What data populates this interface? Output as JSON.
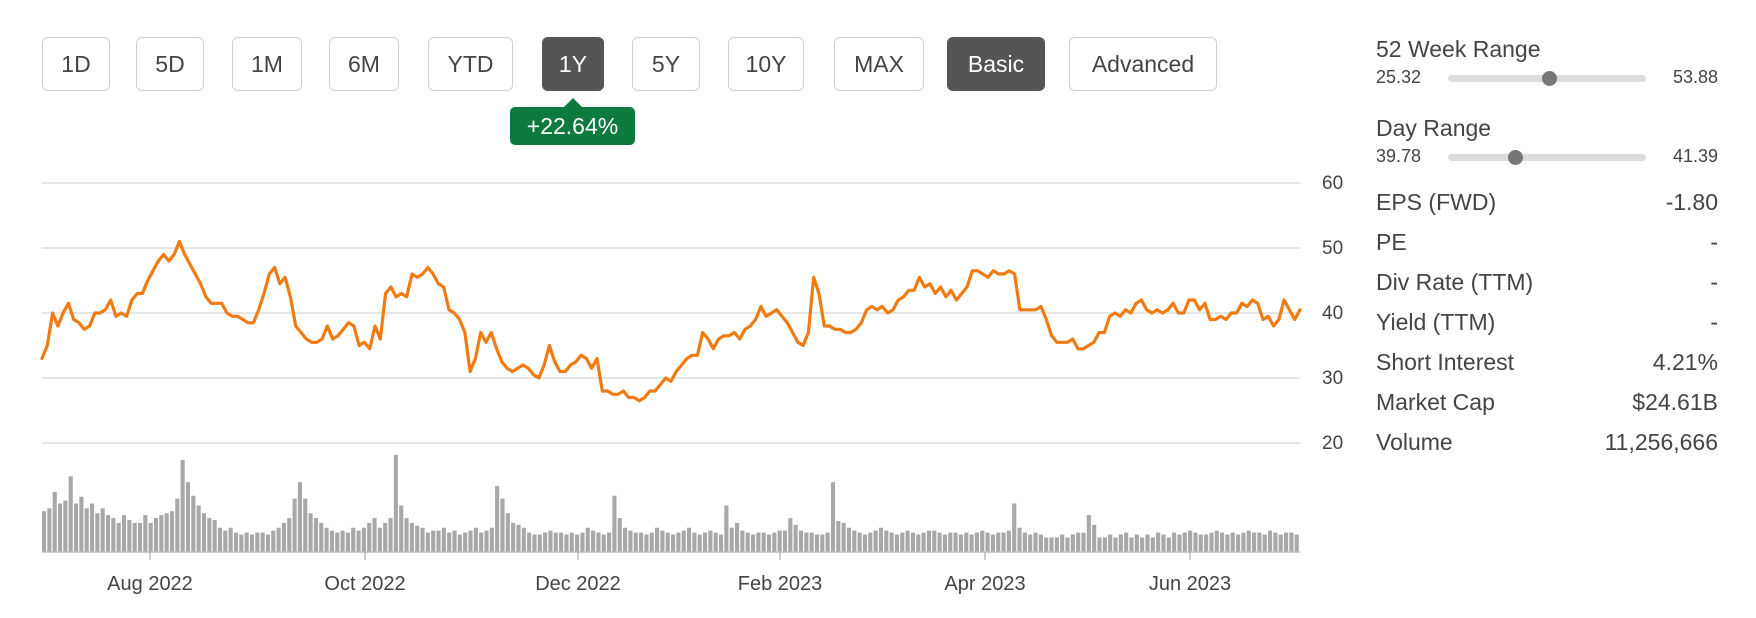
{
  "range_buttons": [
    {
      "label": "1D",
      "active": false
    },
    {
      "label": "5D",
      "active": false
    },
    {
      "label": "1M",
      "active": false
    },
    {
      "label": "6M",
      "active": false
    },
    {
      "label": "YTD",
      "active": false
    },
    {
      "label": "1Y",
      "active": true
    },
    {
      "label": "5Y",
      "active": false
    },
    {
      "label": "10Y",
      "active": false
    },
    {
      "label": "MAX",
      "active": false
    }
  ],
  "mode_buttons": [
    {
      "label": "Basic",
      "active": true
    },
    {
      "label": "Advanced",
      "active": false
    }
  ],
  "change_badge": "+22.64%",
  "colors": {
    "price_line": "#f07b12",
    "volume_bar": "#a8a8a8",
    "grid": "#d7d7d7",
    "active_button": "#555555",
    "badge": "#0f7a3f"
  },
  "chart_data": {
    "type": "line",
    "title": "",
    "ylim": [
      20,
      60
    ],
    "y_ticks": [
      "60",
      "50",
      "40",
      "30",
      "20"
    ],
    "x_ticks": [
      "Aug 2022",
      "Oct 2022",
      "Dec 2022",
      "Feb 2023",
      "Apr 2023",
      "Jun 2023"
    ],
    "grid": true,
    "series": [
      {
        "values": [
          33,
          35,
          40,
          38,
          40,
          41.5,
          39,
          38.5,
          37.5,
          38,
          40,
          40,
          40.5,
          42,
          39.5,
          40,
          39.5,
          42,
          43,
          43,
          45,
          46.5,
          48,
          49,
          48,
          49,
          51,
          49,
          47.5,
          46,
          44.5,
          42.5,
          41.5,
          41.5,
          41.5,
          40,
          39.5,
          39.5,
          39,
          38.5,
          38.5,
          40.5,
          43,
          46,
          47,
          44.5,
          45.5,
          42.5,
          38,
          37,
          36,
          35.5,
          35.5,
          36,
          38,
          36,
          36.5,
          37.5,
          38.5,
          38,
          35,
          35.5,
          34.5,
          38,
          36,
          43,
          44,
          42.5,
          43,
          42.5,
          46,
          45.5,
          46,
          47,
          46,
          44.5,
          44,
          40.5,
          40,
          39,
          37,
          31,
          33,
          37,
          35.5,
          37,
          34.5,
          32.5,
          31.5,
          31,
          31.5,
          32,
          31.5,
          30.5,
          30,
          32,
          35,
          32.5,
          31,
          31,
          32,
          32.5,
          33.5,
          33,
          31.5,
          33,
          28,
          28,
          27.5,
          27.5,
          28,
          27,
          27,
          26.5,
          27,
          28,
          28,
          29,
          30,
          29.5,
          31,
          32,
          33,
          33.5,
          33.5,
          37,
          36,
          34.5,
          36,
          36.5,
          36.5,
          37,
          36,
          37.5,
          38,
          39,
          41,
          39.5,
          40,
          40.5,
          39.5,
          38.5,
          37,
          35.5,
          35,
          37,
          45.5,
          43,
          38,
          38,
          37.5,
          37.5,
          37,
          37,
          37.5,
          38.5,
          40.5,
          41,
          40.5,
          41,
          40,
          40.5,
          42,
          42.5,
          43.5,
          43.5,
          45.5,
          44,
          44.5,
          43,
          44,
          42.5,
          43.5,
          42,
          43,
          44,
          46.5,
          46.5,
          46,
          45.5,
          46.5,
          46,
          46,
          46.5,
          46,
          40.5,
          40.5,
          40.5,
          40.5,
          41,
          39,
          36.5,
          35.5,
          35.5,
          35.5,
          36,
          34.5,
          34.5,
          35,
          35.5,
          37,
          37,
          39.5,
          40,
          39.5,
          40.5,
          40,
          41.5,
          42,
          40.5,
          40,
          40.5,
          40,
          40.5,
          41.5,
          40,
          40,
          42,
          42,
          40.5,
          41.5,
          39,
          39,
          39.5,
          39,
          40,
          40,
          41.5,
          41,
          42,
          41.5,
          39,
          39.5,
          38,
          39,
          42,
          40.5,
          39,
          40.5
        ]
      }
    ],
    "volume_series": {
      "name": "Volume",
      "values": [
        0.42,
        0.45,
        0.62,
        0.5,
        0.53,
        0.78,
        0.5,
        0.57,
        0.45,
        0.5,
        0.4,
        0.45,
        0.38,
        0.35,
        0.3,
        0.38,
        0.33,
        0.3,
        0.3,
        0.38,
        0.3,
        0.35,
        0.38,
        0.4,
        0.42,
        0.55,
        0.95,
        0.72,
        0.58,
        0.48,
        0.4,
        0.35,
        0.33,
        0.25,
        0.22,
        0.25,
        0.2,
        0.18,
        0.2,
        0.18,
        0.2,
        0.2,
        0.18,
        0.22,
        0.25,
        0.3,
        0.35,
        0.55,
        0.72,
        0.55,
        0.4,
        0.35,
        0.3,
        0.25,
        0.22,
        0.2,
        0.22,
        0.2,
        0.25,
        0.22,
        0.25,
        0.3,
        0.35,
        0.25,
        0.3,
        0.35,
        1.0,
        0.48,
        0.35,
        0.3,
        0.27,
        0.25,
        0.2,
        0.22,
        0.22,
        0.25,
        0.2,
        0.22,
        0.18,
        0.2,
        0.22,
        0.25,
        0.2,
        0.22,
        0.25,
        0.68,
        0.55,
        0.4,
        0.3,
        0.28,
        0.25,
        0.2,
        0.18,
        0.18,
        0.2,
        0.22,
        0.2,
        0.2,
        0.18,
        0.2,
        0.18,
        0.2,
        0.25,
        0.22,
        0.2,
        0.18,
        0.2,
        0.58,
        0.35,
        0.25,
        0.22,
        0.2,
        0.2,
        0.18,
        0.2,
        0.25,
        0.22,
        0.2,
        0.18,
        0.2,
        0.22,
        0.25,
        0.2,
        0.18,
        0.2,
        0.22,
        0.2,
        0.18,
        0.48,
        0.25,
        0.3,
        0.22,
        0.2,
        0.18,
        0.2,
        0.2,
        0.18,
        0.2,
        0.22,
        0.22,
        0.35,
        0.28,
        0.22,
        0.2,
        0.2,
        0.18,
        0.18,
        0.2,
        0.72,
        0.32,
        0.3,
        0.25,
        0.22,
        0.2,
        0.18,
        0.2,
        0.22,
        0.25,
        0.22,
        0.2,
        0.18,
        0.2,
        0.22,
        0.2,
        0.18,
        0.2,
        0.22,
        0.22,
        0.2,
        0.18,
        0.2,
        0.2,
        0.18,
        0.2,
        0.18,
        0.2,
        0.22,
        0.2,
        0.18,
        0.2,
        0.2,
        0.22,
        0.5,
        0.25,
        0.2,
        0.18,
        0.2,
        0.18,
        0.15,
        0.15,
        0.15,
        0.18,
        0.15,
        0.18,
        0.2,
        0.2,
        0.38,
        0.28,
        0.15,
        0.15,
        0.18,
        0.15,
        0.18,
        0.2,
        0.15,
        0.18,
        0.15,
        0.18,
        0.15,
        0.2,
        0.18,
        0.15,
        0.2,
        0.18,
        0.2,
        0.22,
        0.2,
        0.18,
        0.18,
        0.2,
        0.22,
        0.2,
        0.18,
        0.2,
        0.18,
        0.2,
        0.22,
        0.2,
        0.2,
        0.18,
        0.22,
        0.2,
        0.18,
        0.2,
        0.2,
        0.18
      ]
    }
  },
  "stats_panel": {
    "week52": {
      "label": "52 Week Range",
      "low": "25.32",
      "high": "53.88",
      "current_fraction": 0.51
    },
    "day": {
      "label": "Day Range",
      "low": "39.78",
      "high": "41.39",
      "current_fraction": 0.34
    },
    "rows": [
      {
        "label": "EPS (FWD)",
        "value": "-1.80"
      },
      {
        "label": "PE",
        "value": "-"
      },
      {
        "label": "Div Rate (TTM)",
        "value": "-"
      },
      {
        "label": "Yield (TTM)",
        "value": "-"
      },
      {
        "label": "Short Interest",
        "value": "4.21%"
      },
      {
        "label": "Market Cap",
        "value": "$24.61B"
      },
      {
        "label": "Volume",
        "value": "11,256,666"
      }
    ]
  }
}
